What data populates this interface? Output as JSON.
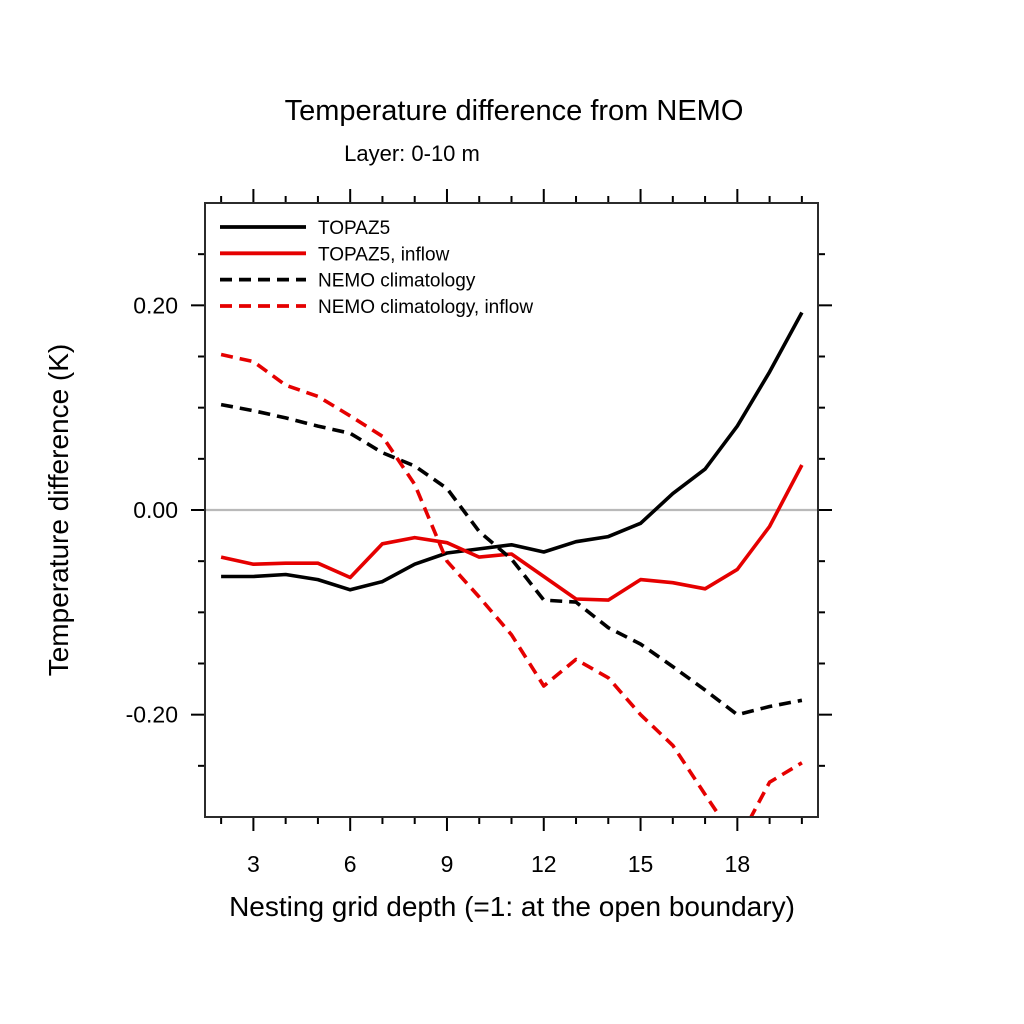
{
  "chart_data": {
    "type": "line",
    "title": "Temperature difference from NEMO",
    "subtitle": "Layer: 0-10 m",
    "xlabel": "Nesting grid depth (=1: at the open boundary)",
    "ylabel": "Temperature difference (K)",
    "xlim": [
      1.5,
      20.5
    ],
    "ylim": [
      -0.3,
      0.3
    ],
    "x_major_ticks": [
      3,
      6,
      9,
      12,
      15,
      18
    ],
    "x_minor_ticks": [
      2,
      4,
      5,
      7,
      8,
      10,
      11,
      13,
      14,
      16,
      17,
      19,
      20
    ],
    "y_major_ticks": [
      0.2,
      0.0,
      -0.2
    ],
    "y_major_tick_labels": [
      "0.20",
      "0.00",
      "-0.20"
    ],
    "y_minor_ticks": [
      0.25,
      0.15,
      0.1,
      0.05,
      -0.05,
      -0.1,
      -0.15,
      -0.25
    ],
    "zero_line": 0.0,
    "grid": "zero-line-only",
    "legend_position": "top-left-inside",
    "x": [
      2,
      3,
      4,
      5,
      6,
      7,
      8,
      9,
      10,
      11,
      12,
      13,
      14,
      15,
      16,
      17,
      18,
      19,
      20
    ],
    "series": [
      {
        "name": "TOPAZ5",
        "color": "#000000",
        "style": "solid",
        "values": [
          -0.065,
          -0.065,
          -0.063,
          -0.068,
          -0.078,
          -0.07,
          -0.053,
          -0.042,
          -0.038,
          -0.034,
          -0.041,
          -0.031,
          -0.026,
          -0.013,
          0.016,
          0.04,
          0.082,
          0.135,
          0.193
        ]
      },
      {
        "name": "TOPAZ5, inflow",
        "color": "#e50000",
        "style": "solid",
        "values": [
          -0.046,
          -0.053,
          -0.052,
          -0.052,
          -0.066,
          -0.033,
          -0.027,
          -0.032,
          -0.046,
          -0.043,
          -0.065,
          -0.087,
          -0.088,
          -0.068,
          -0.071,
          -0.077,
          -0.058,
          -0.016,
          0.044
        ]
      },
      {
        "name": "NEMO climatology",
        "color": "#000000",
        "style": "dashed",
        "values": [
          0.103,
          0.097,
          0.09,
          0.082,
          0.075,
          0.056,
          0.043,
          0.021,
          -0.021,
          -0.048,
          -0.088,
          -0.09,
          -0.115,
          -0.131,
          -0.153,
          -0.176,
          -0.2,
          -0.192,
          -0.186
        ]
      },
      {
        "name": "NEMO climatology, inflow",
        "color": "#e50000",
        "style": "dashed",
        "values": [
          0.152,
          0.145,
          0.122,
          0.111,
          0.092,
          0.072,
          0.025,
          -0.05,
          -0.085,
          -0.122,
          -0.172,
          -0.146,
          -0.164,
          -0.2,
          -0.23,
          -0.278,
          -0.325,
          -0.266,
          -0.247
        ]
      }
    ]
  },
  "colors": {
    "red": "#e50000",
    "black": "#000000",
    "zero_line": "#b9b9b9",
    "frame": "#2b2b2b",
    "background": "#ffffff"
  }
}
